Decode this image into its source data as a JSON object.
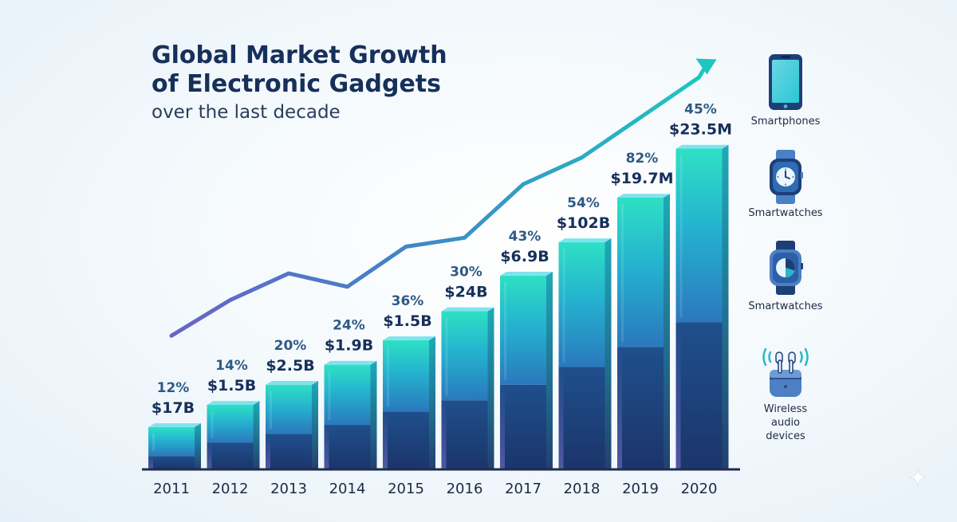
{
  "title": {
    "line1": "Global Market Growth",
    "line2": "of Electronic Gadgets",
    "subtitle": "over the last decade"
  },
  "chart_data": {
    "type": "bar",
    "categories": [
      "2011",
      "2012",
      "2013",
      "2014",
      "2015",
      "2016",
      "2017",
      "2018",
      "2019",
      "2020"
    ],
    "value_labels": [
      "$17B",
      "$1.5B",
      "$2.5B",
      "$1.9B",
      "$1.5B",
      "$24B",
      "$6.9B",
      "$102B",
      "$19.7M",
      "$23.5M"
    ],
    "percent_labels": [
      "12%",
      "14%",
      "20%",
      "24%",
      "36%",
      "30%",
      "43%",
      "54%",
      "82%",
      "45%"
    ],
    "bar_heights_relative": [
      9.5,
      14.5,
      19.0,
      23.5,
      29.0,
      35.5,
      43.5,
      51.0,
      61.0,
      72.0
    ],
    "bar_lower_segment_relative": [
      3.0,
      6.0,
      8.0,
      10.0,
      13.0,
      15.5,
      19.0,
      23.0,
      27.5,
      33.0
    ],
    "trend_line_relative": [
      30,
      38,
      44,
      41,
      50,
      52,
      64,
      70,
      79,
      88
    ],
    "trend_arrow": true,
    "ylim": [
      0,
      100
    ],
    "xlabel": "",
    "ylabel": "",
    "grid": false,
    "colors": {
      "bar_top": "#2ee0c4",
      "bar_mid": "#2b8fc8",
      "bar_bottom": "#1d3f78",
      "bar_cap": "#6fd8ea",
      "trend_start": "#6a63c8",
      "trend_end": "#1ec6c0",
      "axis": "#1e2c50",
      "title": "#16305a",
      "value_text": "#16305a",
      "percent_text": "#2e5a86",
      "year_text": "#1e2a44"
    }
  },
  "legend": [
    {
      "label": "Smartphones",
      "icon": "smartphone-icon"
    },
    {
      "label": "Smartwatches",
      "icon": "smartwatch-icon"
    },
    {
      "label": "Smartwatches",
      "icon": "smartwatch-chart-icon"
    },
    {
      "label": "Wireless audio devices",
      "lines": [
        "Wireless",
        "audio",
        "devices"
      ],
      "icon": "earbuds-icon"
    }
  ]
}
